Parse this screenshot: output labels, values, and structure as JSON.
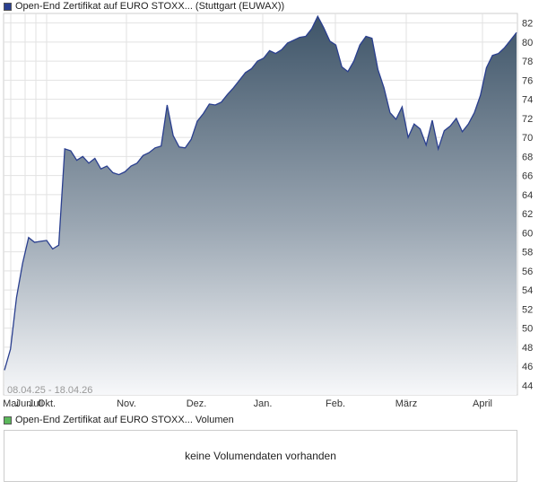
{
  "price_legend": {
    "label": "Open-End Zertifikat auf EURO STOXX... (Stuttgart (EUWAX))",
    "color": "#2a3f8f"
  },
  "volume_legend": {
    "label": "Open-End Zertifikat auf EURO STOXX... Volumen",
    "color": "#5cb85c"
  },
  "volume_message": "keine Volumendaten vorhanden",
  "chart_data": {
    "type": "area",
    "date_range": "08.04.25 - 18.04.26",
    "x_tick_labels": [
      "Mai",
      "Jun.",
      "Juli",
      "Okt.",
      "Nov.",
      "Dez.",
      "Jan.",
      "Feb.",
      "März",
      "April"
    ],
    "y_ticks": [
      44,
      46,
      48,
      50,
      52,
      54,
      56,
      58,
      60,
      62,
      64,
      66,
      68,
      70,
      72,
      74,
      76,
      78,
      80,
      82
    ],
    "ylim": [
      43,
      83
    ],
    "series": [
      {
        "values": [
          45.6,
          47.8,
          53.2,
          56.8,
          59.5,
          59.0,
          59.1,
          59.2,
          58.3,
          58.7,
          68.8,
          68.6,
          67.6,
          68.0,
          67.3,
          67.8,
          66.7,
          67.0,
          66.3,
          66.1,
          66.4,
          67.0,
          67.3,
          68.1,
          68.4,
          68.9,
          69.1,
          73.4,
          70.2,
          69.0,
          68.9,
          69.8,
          71.7,
          72.5,
          73.5,
          73.4,
          73.7,
          74.5,
          75.2,
          76.0,
          76.8,
          77.2,
          78.0,
          78.3,
          79.1,
          78.8,
          79.2,
          79.9,
          80.2,
          80.5,
          80.6,
          81.4,
          82.7,
          81.5,
          80.1,
          79.7,
          77.4,
          76.9,
          78.0,
          79.7,
          80.6,
          80.4,
          77.1,
          75.2,
          72.6,
          71.9,
          73.2,
          70.0,
          71.4,
          70.9,
          69.2,
          71.8,
          68.8,
          70.7,
          71.2,
          72.0,
          70.6,
          71.4,
          72.6,
          74.4,
          77.3,
          78.6,
          78.8,
          79.4,
          80.2,
          81.0
        ]
      }
    ]
  }
}
